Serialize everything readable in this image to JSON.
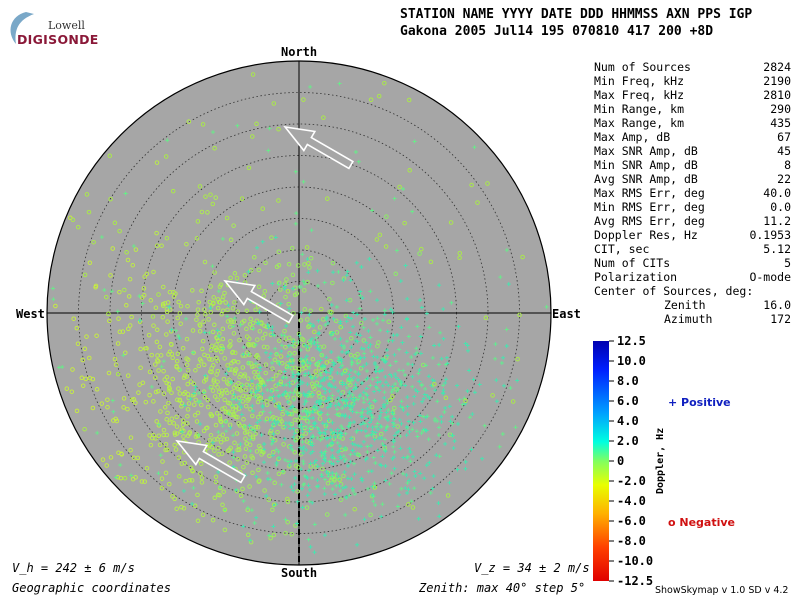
{
  "logo": {
    "line1": "Lowell",
    "line2": "DIGISONDE"
  },
  "header": {
    "labels": "STATION NAME    YYYY DATE  DDD HHMMSS AXN PPS IGP",
    "values": "Gakona          2005 Jul14 195 070810 417 200 +8D"
  },
  "stats": [
    {
      "label": "Num of Sources",
      "value": "2824"
    },
    {
      "label": "Min Freq, kHz",
      "value": "2190"
    },
    {
      "label": "Max Freq, kHz",
      "value": "2810"
    },
    {
      "label": "Min Range, km",
      "value": "290"
    },
    {
      "label": "Max Range, km",
      "value": "435"
    },
    {
      "label": "Max Amp, dB",
      "value": "67"
    },
    {
      "label": "Max SNR Amp, dB",
      "value": "45"
    },
    {
      "label": "Min SNR Amp, dB",
      "value": "8"
    },
    {
      "label": "Avg SNR Amp, dB",
      "value": "22"
    },
    {
      "label": "Max RMS Err, deg",
      "value": "40.0"
    },
    {
      "label": "Min RMS Err, deg",
      "value": "0.0"
    },
    {
      "label": "Avg RMS Err, deg",
      "value": "11.2"
    },
    {
      "label": "Doppler Res, Hz",
      "value": "0.1953"
    },
    {
      "label": "CIT, sec",
      "value": "5.12"
    },
    {
      "label": "Num of CITs",
      "value": "5"
    },
    {
      "label": "Polarization",
      "value": "O-mode"
    }
  ],
  "center": {
    "title": "Center of Sources, deg:",
    "zenith_label": "Zenith",
    "zenith_value": "16.0",
    "azimuth_label": "Azimuth",
    "azimuth_value": "172"
  },
  "compass": {
    "north": "North",
    "south": "South",
    "east": "East",
    "west": "West"
  },
  "footer": {
    "vh": "V_h = 242 ± 6 m/s",
    "vz": "V_z = 34 ± 2 m/s",
    "coords": "Geographic coordinates",
    "zenith_info": "Zenith: max 40°  step 5°",
    "credit": "ShowSkymap v 1.0   SD v 4.2"
  },
  "legend": {
    "positive": "+ Positive",
    "negative": "o Negative"
  },
  "colors": {
    "disk": "#a6a6a6",
    "ring": "#303030",
    "arrow_fill": "#a6a6a6",
    "arrow_edge": "#ffffff",
    "point": "#99ee44"
  },
  "chart_data": {
    "type": "scatter",
    "projection": "polar skymap",
    "zenith_max_deg": 40,
    "zenith_step_deg": 5,
    "colorbar": {
      "label": "Doppler, Hz",
      "range": [
        -12.5,
        12.5
      ],
      "ticks": [
        "12.5",
        "10.0",
        "8.0",
        "6.0",
        "4.0",
        "2.0",
        "0",
        "-2.0",
        "-4.0",
        "-6.0",
        "-8.0",
        "-10.0",
        "-12.5"
      ]
    },
    "series": [
      {
        "name": "Positive",
        "marker": "+",
        "note": "sources concentrated south-east of zenith, Doppler ~ +1 to +3 Hz"
      },
      {
        "name": "Negative",
        "marker": "o",
        "note": "sources concentrated south-west of zenith, Doppler ~ -1 to -3 Hz"
      }
    ],
    "center_of_sources": {
      "zenith_deg": 16.0,
      "azimuth_deg": 172
    },
    "drift_arrows_azimuth_deg": [
      300,
      300,
      300
    ]
  }
}
